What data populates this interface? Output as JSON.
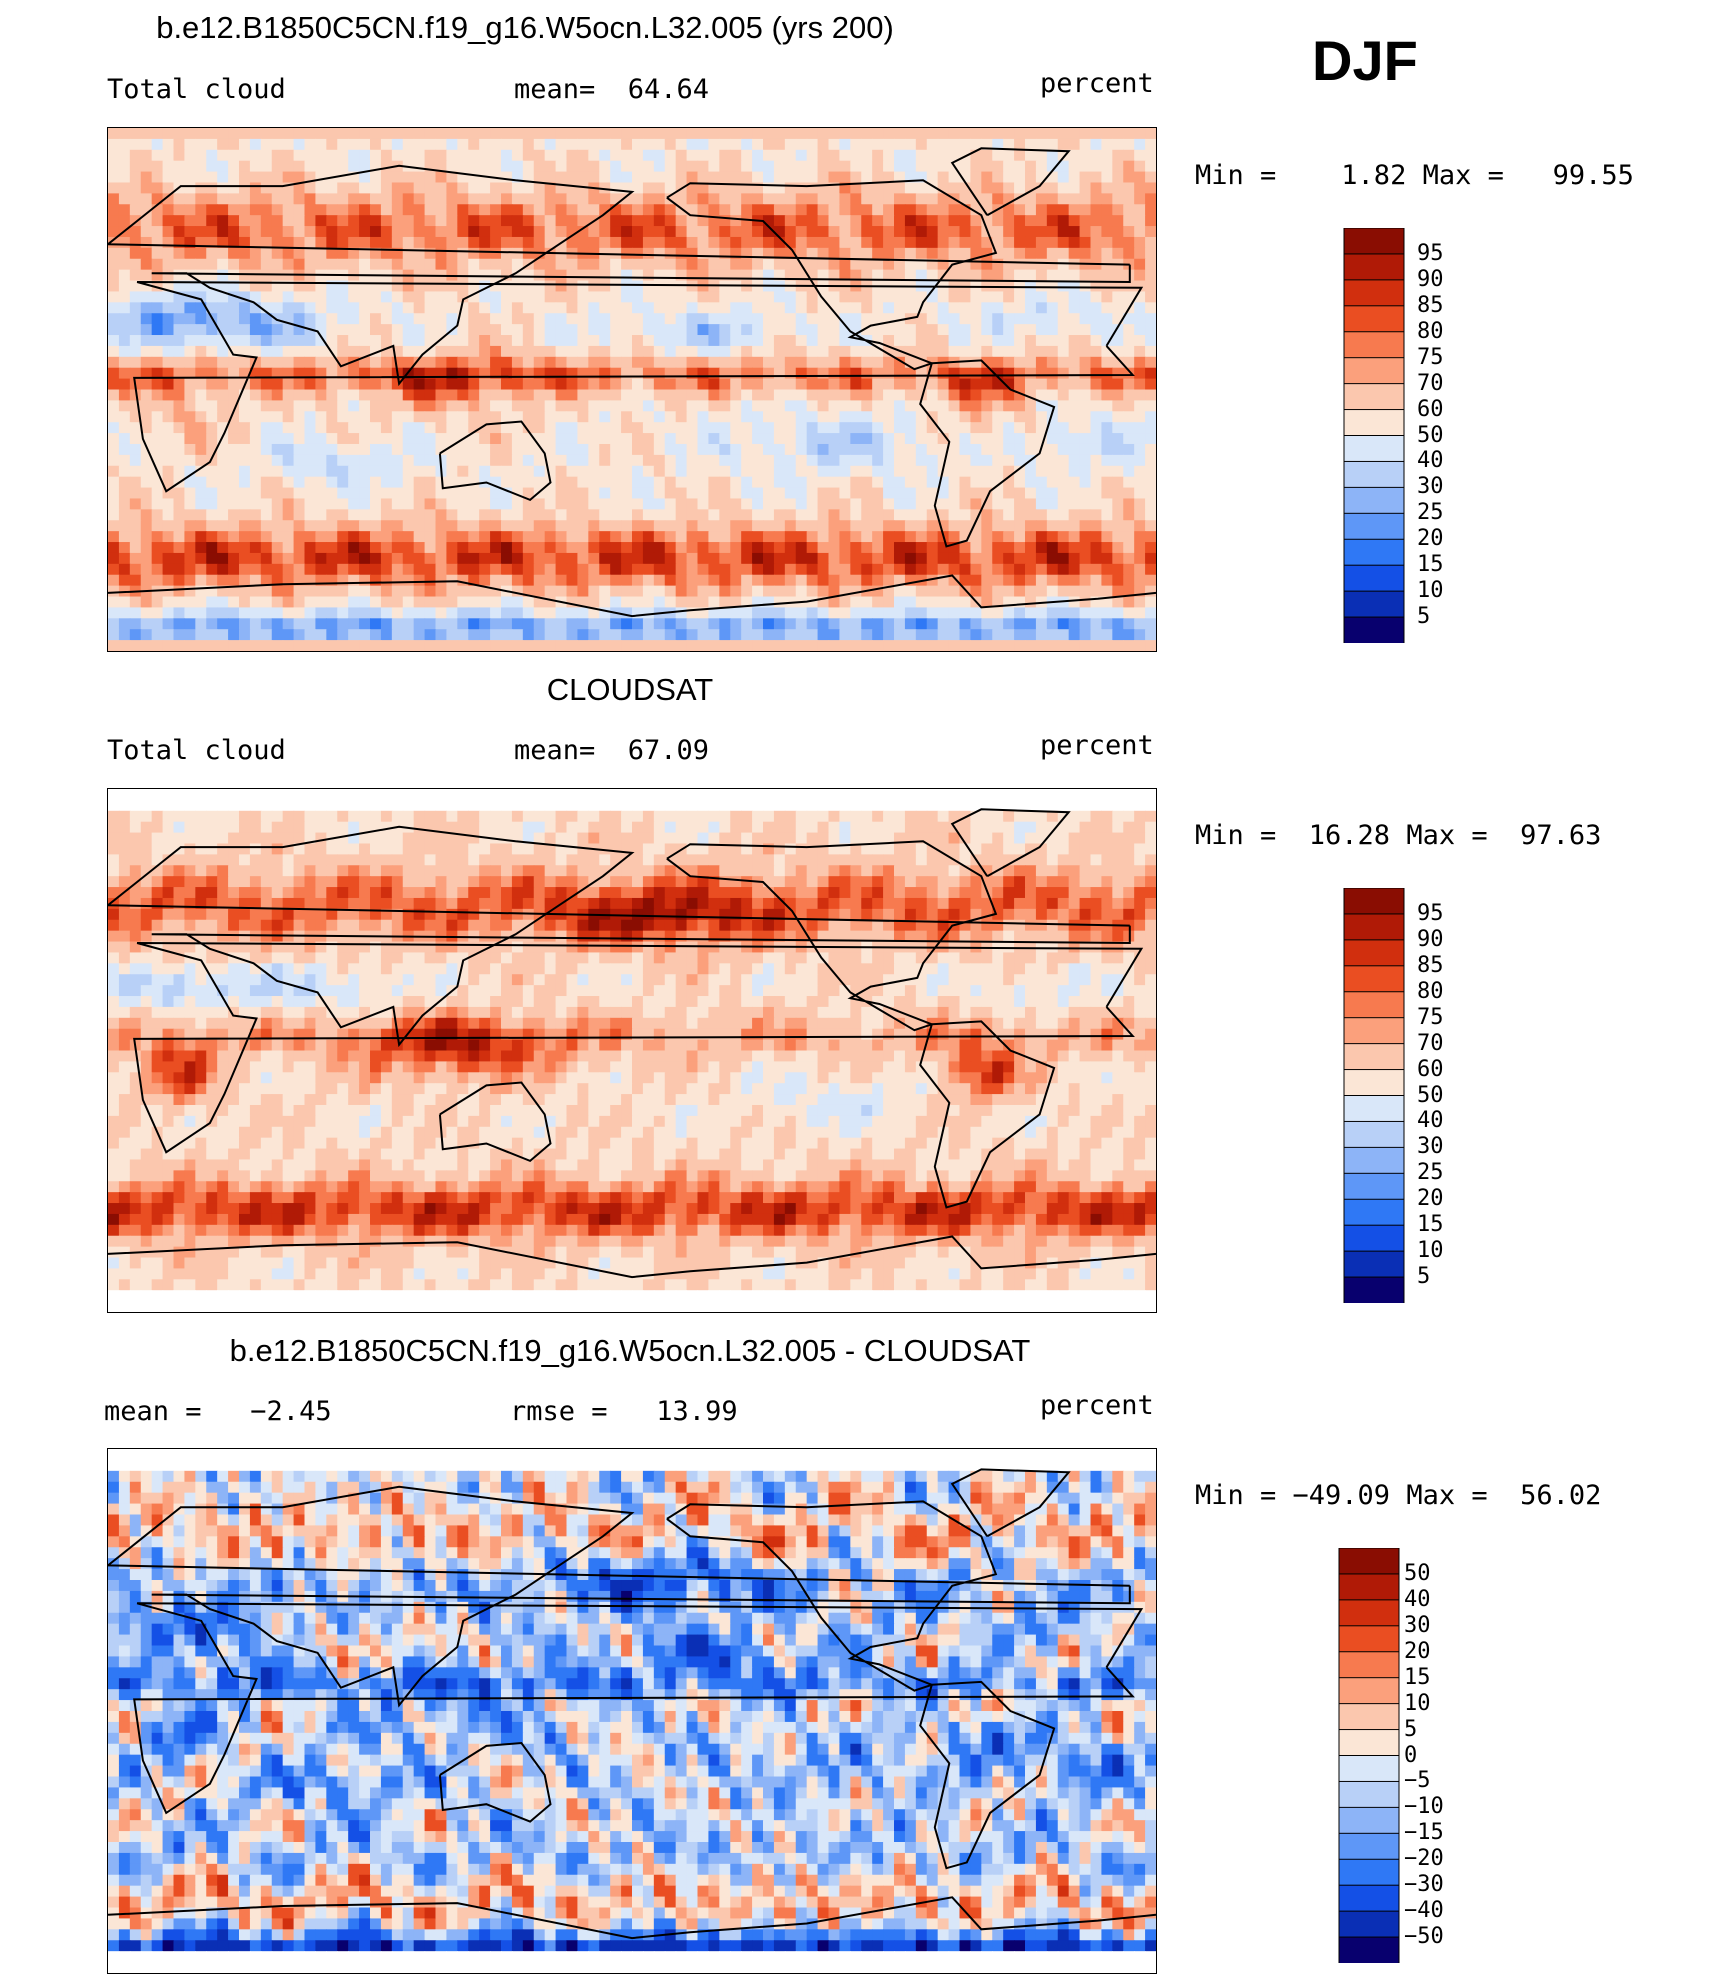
{
  "season": "DJF",
  "panels": [
    {
      "title": "b.e12.B1850C5CN.f19_g16.W5ocn.L32.005 (yrs 200)",
      "left_label": "Total cloud",
      "center_label": "mean=  64.64",
      "right_label": "percent",
      "minmax": "Min =    1.82 Max =   99.55",
      "colorbar_labels": [
        "95",
        "90",
        "85",
        "80",
        "75",
        "70",
        "60",
        "50",
        "40",
        "30",
        "25",
        "20",
        "15",
        "10",
        "5"
      ]
    },
    {
      "title": "CLOUDSAT",
      "left_label": "Total cloud",
      "center_label": "mean=  67.09",
      "right_label": "percent",
      "minmax": "Min =  16.28 Max =  97.63",
      "colorbar_labels": [
        "95",
        "90",
        "85",
        "80",
        "75",
        "70",
        "60",
        "50",
        "40",
        "30",
        "25",
        "20",
        "15",
        "10",
        "5"
      ]
    },
    {
      "title": "b.e12.B1850C5CN.f19_g16.W5ocn.L32.005 - CLOUDSAT",
      "left_label": "mean =   −2.45",
      "center_label": "rmse =   13.99",
      "right_label": "percent",
      "minmax": "Min = −49.09 Max =  56.02",
      "colorbar_labels": [
        "50",
        "40",
        "30",
        "20",
        "15",
        "10",
        "5",
        "0",
        "−5",
        "−10",
        "−15",
        "−20",
        "−30",
        "−40",
        "−50"
      ]
    }
  ],
  "colors": {
    "cloud_scale": [
      "#08006e",
      "#0a2fb5",
      "#1450e6",
      "#2f78f5",
      "#5e97f7",
      "#8db4f7",
      "#b8d0f7",
      "#d9e7f9",
      "#fbe6d6",
      "#fbc7ae",
      "#fba07c",
      "#f77a4f",
      "#ea4e22",
      "#d12f0e",
      "#b01a06",
      "#8a0d02"
    ],
    "diff_scale": [
      "#08006e",
      "#0a2fb5",
      "#1450e6",
      "#2f78f5",
      "#5e97f7",
      "#8db4f7",
      "#b8d0f7",
      "#d9e7f9",
      "#fbe6d6",
      "#fbc7ae",
      "#fba07c",
      "#f77a4f",
      "#ea4e22",
      "#d12f0e",
      "#b01a06",
      "#8a0d02"
    ]
  },
  "chart_data": [
    {
      "type": "heatmap",
      "title": "b.e12.B1850C5CN.f19_g16.W5ocn.L32.005 (yrs 200)",
      "variable": "Total cloud",
      "units": "percent",
      "mean": 64.64,
      "min": 1.82,
      "max": 99.55,
      "contour_levels": [
        5,
        10,
        15,
        20,
        25,
        30,
        40,
        50,
        60,
        70,
        75,
        80,
        85,
        90,
        95
      ],
      "projection": "cylindrical equidistant, global, centered 180",
      "coastlines": true
    },
    {
      "type": "heatmap",
      "title": "CLOUDSAT",
      "variable": "Total cloud",
      "units": "percent",
      "mean": 67.09,
      "min": 16.28,
      "max": 97.63,
      "contour_levels": [
        5,
        10,
        15,
        20,
        25,
        30,
        40,
        50,
        60,
        70,
        75,
        80,
        85,
        90,
        95
      ],
      "projection": "cylindrical equidistant, global, centered 180",
      "coastlines": true
    },
    {
      "type": "heatmap",
      "title": "b.e12.B1850C5CN.f19_g16.W5ocn.L32.005 - CLOUDSAT",
      "units": "percent",
      "mean": -2.45,
      "rmse": 13.99,
      "min": -49.09,
      "max": 56.02,
      "contour_levels": [
        -50,
        -40,
        -30,
        -20,
        -15,
        -10,
        -5,
        0,
        5,
        10,
        15,
        20,
        30,
        40,
        50
      ],
      "projection": "cylindrical equidistant, global, centered 180",
      "coastlines": true
    }
  ]
}
